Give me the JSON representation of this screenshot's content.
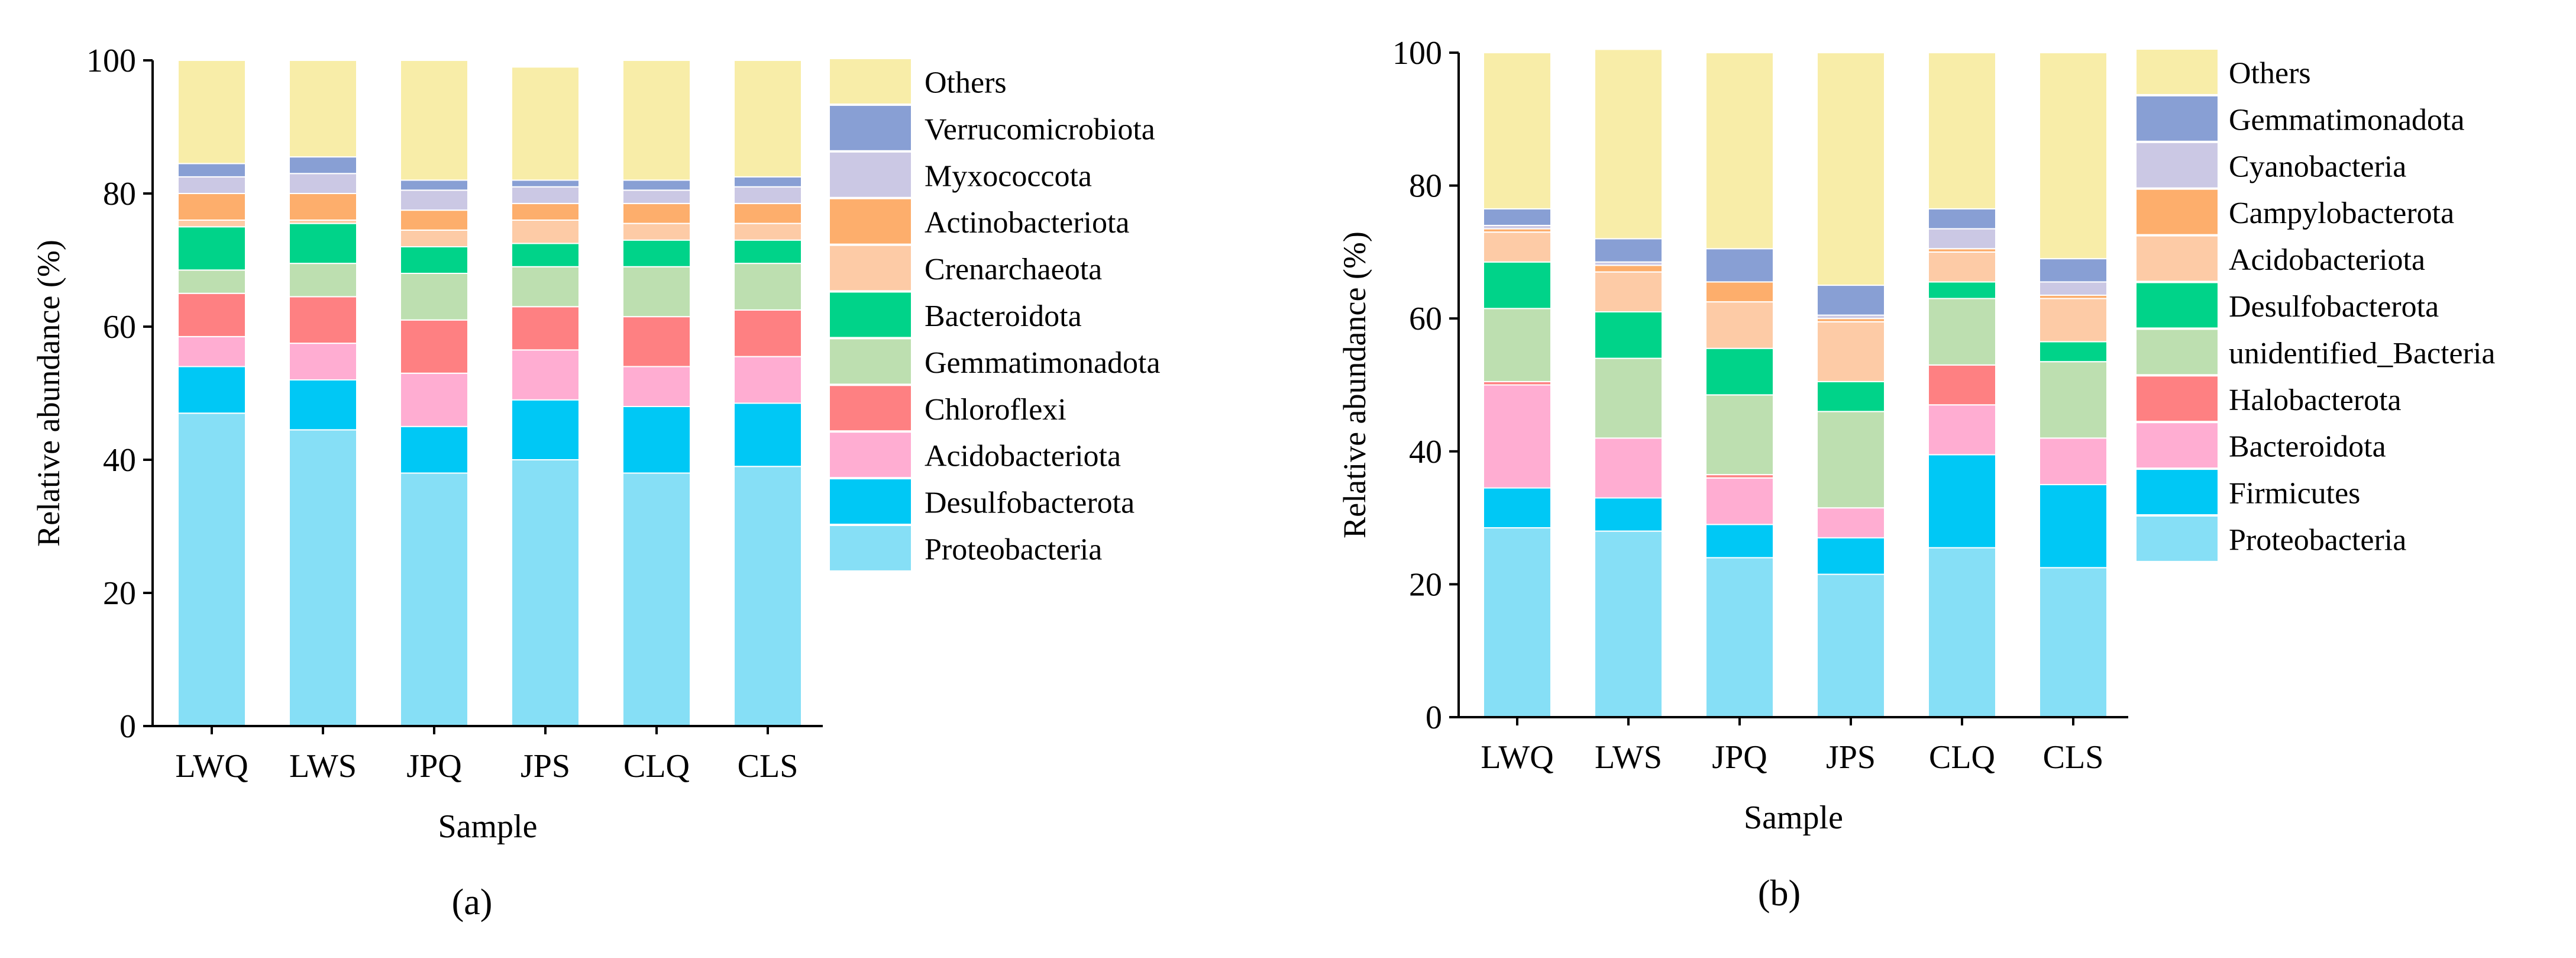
{
  "panels": [
    {
      "id": "a",
      "caption": "(a)",
      "chart_data": {
        "type": "stacked-bar",
        "title": "",
        "xlabel": "Sample",
        "ylabel": "Relative abundance (%)",
        "ylim": [
          0,
          100
        ],
        "yticks": [
          0,
          20,
          40,
          60,
          80,
          100
        ],
        "grid": false,
        "legend_position": "right",
        "categories": [
          "LWQ",
          "LWS",
          "JPQ",
          "JPS",
          "CLQ",
          "CLS"
        ],
        "series": [
          {
            "name": "Proteobacteria",
            "color": "#86DFF6",
            "values": [
              47.0,
              44.5,
              38.0,
              40.0,
              38.0,
              39.0
            ]
          },
          {
            "name": "Desulfobacterota",
            "color": "#00C8F5",
            "values": [
              7.0,
              7.5,
              7.0,
              9.0,
              10.0,
              9.5
            ]
          },
          {
            "name": "Acidobacteriota",
            "color": "#FFADD2",
            "values": [
              4.5,
              5.5,
              8.0,
              7.5,
              6.0,
              7.0
            ]
          },
          {
            "name": "Chloroflexi",
            "color": "#FE8082",
            "values": [
              6.5,
              7.0,
              8.0,
              6.5,
              7.5,
              7.0
            ]
          },
          {
            "name": "Gemmatimonadota",
            "color": "#BDDFB0",
            "values": [
              3.5,
              5.0,
              7.0,
              6.0,
              7.5,
              7.0
            ]
          },
          {
            "name": "Bacteroidota",
            "color": "#00D389",
            "values": [
              6.5,
              6.0,
              4.0,
              3.5,
              4.0,
              3.5
            ]
          },
          {
            "name": "Crenarchaeota",
            "color": "#FDCBA6",
            "values": [
              1.0,
              0.5,
              2.5,
              3.5,
              2.5,
              2.5
            ]
          },
          {
            "name": "Actinobacteriota",
            "color": "#FDAE6C",
            "values": [
              4.0,
              4.0,
              3.0,
              2.5,
              3.0,
              3.0
            ]
          },
          {
            "name": "Myxococcota",
            "color": "#CBC8E4",
            "values": [
              2.5,
              3.0,
              3.0,
              2.5,
              2.0,
              2.5
            ]
          },
          {
            "name": "Verrucomicrobiota",
            "color": "#889FD4",
            "values": [
              2.0,
              2.5,
              1.5,
              1.0,
              1.5,
              1.5
            ]
          },
          {
            "name": "Others",
            "color": "#F8EDA8",
            "values": [
              15.5,
              14.5,
              18.0,
              17.0,
              18.0,
              17.5
            ]
          }
        ]
      }
    },
    {
      "id": "b",
      "caption": "(b)",
      "chart_data": {
        "type": "stacked-bar",
        "title": "",
        "xlabel": "Sample",
        "ylabel": "Relative abundance (%)",
        "ylim": [
          0,
          100
        ],
        "yticks": [
          0,
          20,
          40,
          60,
          80,
          100
        ],
        "grid": false,
        "legend_position": "right",
        "categories": [
          "LWQ",
          "LWS",
          "JPQ",
          "JPS",
          "CLQ",
          "CLS"
        ],
        "series": [
          {
            "name": "Proteobacteria",
            "color": "#86DFF6",
            "values": [
              28.5,
              28.0,
              24.0,
              21.5,
              25.5,
              22.5
            ]
          },
          {
            "name": "Firmicutes",
            "color": "#00C8F5",
            "values": [
              6.0,
              5.0,
              5.0,
              5.5,
              14.0,
              12.5
            ]
          },
          {
            "name": "Bacteroidota",
            "color": "#FFADD2",
            "values": [
              15.5,
              9.0,
              7.0,
              4.5,
              7.5,
              7.0
            ]
          },
          {
            "name": "Halobacterota",
            "color": "#FE8082",
            "values": [
              0.5,
              0.0,
              0.5,
              0.0,
              6.0,
              0.0
            ]
          },
          {
            "name": "unidentified_Bacteria",
            "color": "#BDDFB0",
            "values": [
              11.0,
              12.0,
              12.0,
              14.5,
              10.0,
              11.5
            ]
          },
          {
            "name": "Desulfobacterota",
            "color": "#00D389",
            "values": [
              7.0,
              7.0,
              7.0,
              4.5,
              2.5,
              3.0
            ]
          },
          {
            "name": "Acidobacteriota",
            "color": "#FDCBA6",
            "values": [
              4.5,
              6.0,
              7.0,
              9.0,
              4.5,
              6.5
            ]
          },
          {
            "name": "Campylobacterota",
            "color": "#FDAE6C",
            "values": [
              0.5,
              1.0,
              3.0,
              0.5,
              0.5,
              0.5
            ]
          },
          {
            "name": "Cyanobacteria",
            "color": "#CBC8E4",
            "values": [
              0.5,
              0.5,
              0.0,
              0.5,
              3.0,
              2.0
            ]
          },
          {
            "name": "Gemmatimonadota",
            "color": "#889FD4",
            "values": [
              2.5,
              3.5,
              5.0,
              4.5,
              3.0,
              3.5
            ]
          },
          {
            "name": "Others",
            "color": "#F8EDA8",
            "values": [
              23.5,
              28.5,
              29.5,
              35.0,
              23.5,
              31.0
            ]
          }
        ]
      }
    }
  ]
}
